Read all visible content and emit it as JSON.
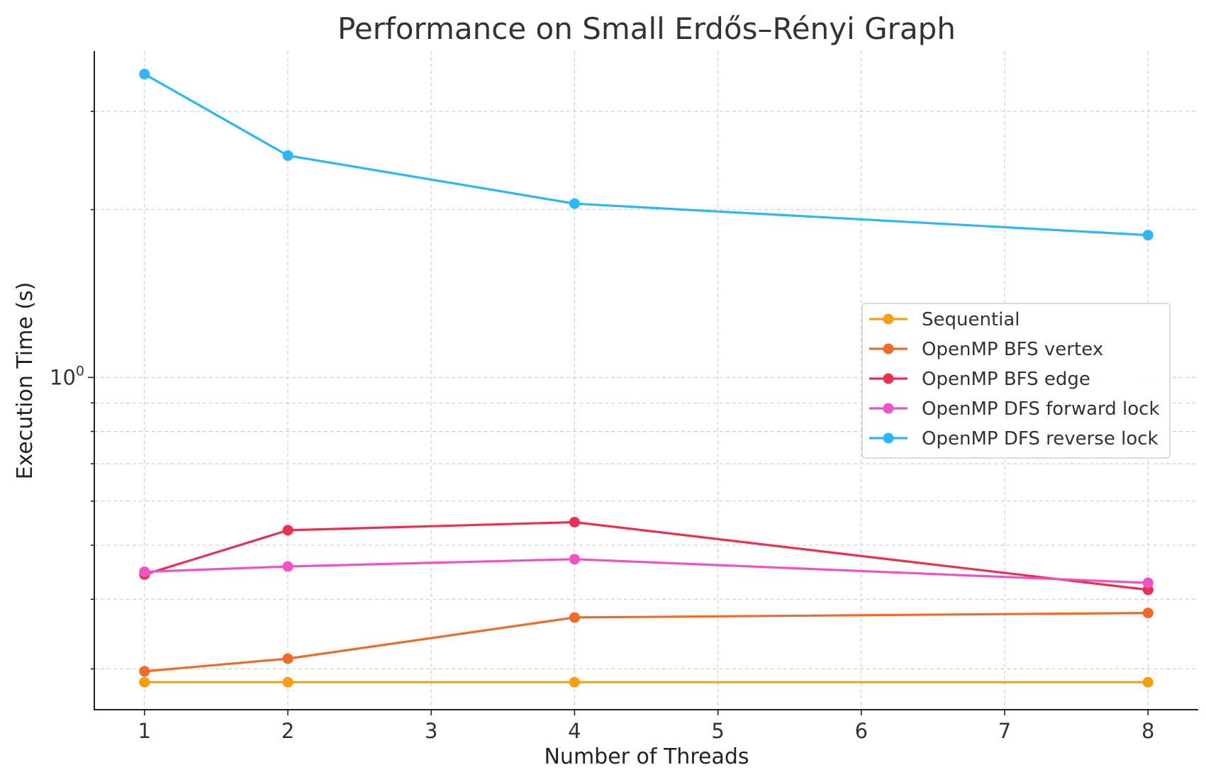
{
  "chart_data": {
    "type": "line",
    "title": "Performance on Small Erdős–Rényi Graph",
    "xlabel": "Number of Threads",
    "ylabel": "Execution Time (s)",
    "x_ticks": [
      1,
      2,
      3,
      4,
      5,
      6,
      7,
      8
    ],
    "xlim": [
      0.65,
      8.35
    ],
    "ylim": [
      0.2535,
      3.85
    ],
    "yscale": "log",
    "y_major_tick": {
      "value": 1,
      "label_base": "10",
      "label_exp": "0"
    },
    "y_minor_ticks": [
      0.3,
      0.4,
      0.5,
      0.6,
      0.7,
      0.8,
      0.9,
      2,
      3
    ],
    "grid": true,
    "legend_position": "center-right",
    "series": [
      {
        "name": "Sequential",
        "color": "#F5A10F",
        "x": [
          1,
          2,
          4,
          8
        ],
        "y": [
          0.284,
          0.284,
          0.284,
          0.284
        ]
      },
      {
        "name": "OpenMP BFS vertex",
        "color": "#F06A28",
        "x": [
          1,
          2,
          4,
          8
        ],
        "y": [
          0.297,
          0.313,
          0.371,
          0.378
        ]
      },
      {
        "name": "OpenMP BFS edge",
        "color": "#EB2F50",
        "x": [
          1,
          2,
          4,
          8
        ],
        "y": [
          0.443,
          0.532,
          0.55,
          0.416
        ]
      },
      {
        "name": "OpenMP DFS forward lock",
        "color": "#F052C6",
        "x": [
          1,
          2,
          4,
          8
        ],
        "y": [
          0.448,
          0.458,
          0.472,
          0.428
        ]
      },
      {
        "name": "OpenMP DFS reverse lock",
        "color": "#2DB8F5",
        "x": [
          1,
          2,
          4,
          8
        ],
        "y": [
          3.5,
          2.5,
          2.05,
          1.8
        ]
      }
    ]
  }
}
